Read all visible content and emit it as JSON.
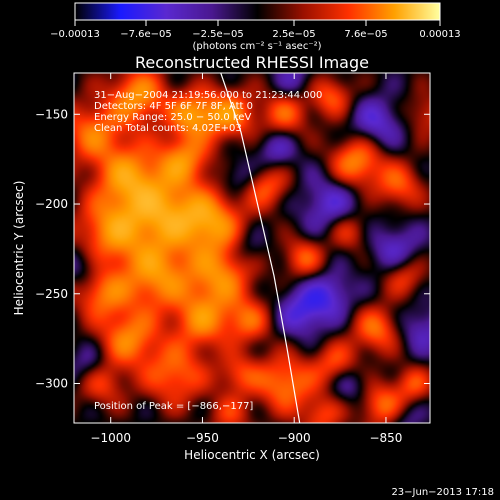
{
  "chart_data": {
    "type": "heatmap",
    "title": "Reconstructed RHESSI Image",
    "xlabel": "Heliocentric X (arcsec)",
    "ylabel": "Heliocentric Y (arcsec)",
    "xlim": [
      -1020,
      -826
    ],
    "ylim": [
      -322,
      -127
    ],
    "x_ticks": [
      -1000,
      -950,
      -900,
      -850
    ],
    "x_tick_labels": [
      "−1000",
      "−950",
      "−900",
      "−850"
    ],
    "y_ticks": [
      -300,
      -250,
      -200,
      -150
    ],
    "y_tick_labels": [
      "−300",
      "−250",
      "−200",
      "−150"
    ],
    "colorbar": {
      "range": [
        -0.00013,
        0.00013
      ],
      "tick_labels": [
        "−0.00013",
        "−7.6e−05",
        "−2.5e−05",
        "2.5e−05",
        "7.6e−05",
        "0.00013"
      ],
      "unit_label": "(photons cm⁻² s⁻¹ asec⁻²)",
      "colormap": [
        "#000000",
        "#1a1aff",
        "#5a28d0",
        "#4a1890",
        "#000000",
        "#9a1000",
        "#ff3000",
        "#ffa000",
        "#ffffa0"
      ]
    },
    "annotations": {
      "time": "31−Aug−2004 21:19:56.000 to 21:23:44.000",
      "detectors": "Detectors: 4F 5F 6F 7F 8F, Att 0",
      "energy": "Energy Range: 25.0 − 50.0 keV",
      "method": "Clean    Total counts: 4.02E+03",
      "peak": "Position of Peak = [−866,−177]"
    },
    "peak": [
      -866,
      -177
    ],
    "limb_line": [
      [
        -940,
        -127
      ],
      [
        -929,
        -160
      ],
      [
        -920,
        -200
      ],
      [
        -911,
        -240
      ],
      [
        -904,
        -280
      ],
      [
        -897,
        -322
      ]
    ],
    "blobs": [
      [
        -985,
        -140,
        1.0,
        11
      ],
      [
        -955,
        -150,
        1.0,
        9
      ],
      [
        -1010,
        -160,
        0.8,
        12
      ],
      [
        -990,
        -185,
        1.0,
        13
      ],
      [
        -960,
        -175,
        0.9,
        10
      ],
      [
        -935,
        -150,
        0.9,
        10
      ],
      [
        -970,
        -205,
        1.0,
        14
      ],
      [
        -1000,
        -215,
        0.95,
        13
      ],
      [
        -945,
        -210,
        1.0,
        12
      ],
      [
        -975,
        -240,
        1.0,
        14
      ],
      [
        -940,
        -240,
        0.9,
        12
      ],
      [
        -1005,
        -250,
        0.8,
        10
      ],
      [
        -990,
        -275,
        0.9,
        11
      ],
      [
        -950,
        -265,
        0.85,
        11
      ],
      [
        -925,
        -265,
        0.7,
        9
      ],
      [
        -965,
        -295,
        0.8,
        12
      ],
      [
        -1005,
        -300,
        0.6,
        9
      ],
      [
        -930,
        -295,
        0.6,
        8
      ],
      [
        -915,
        -190,
        0.7,
        9
      ],
      [
        -905,
        -150,
        0.7,
        9
      ],
      [
        -866,
        -177,
        1.0,
        10
      ],
      [
        -880,
        -140,
        0.7,
        8
      ],
      [
        -843,
        -190,
        0.7,
        9
      ],
      [
        -870,
        -215,
        0.6,
        8
      ],
      [
        -895,
        -230,
        0.7,
        8
      ],
      [
        -905,
        -300,
        0.9,
        11
      ],
      [
        -877,
        -290,
        0.7,
        9
      ],
      [
        -855,
        -270,
        0.8,
        9
      ],
      [
        -840,
        -240,
        0.6,
        8
      ],
      [
        -852,
        -312,
        0.8,
        9
      ],
      [
        -885,
        -318,
        0.6,
        8
      ],
      [
        -935,
        -318,
        0.5,
        8
      ],
      [
        -835,
        -300,
        0.6,
        7
      ],
      [
        -828,
        -150,
        0.5,
        8
      ],
      [
        -895,
        -260,
        -0.7,
        10
      ],
      [
        -880,
        -200,
        -0.6,
        12
      ],
      [
        -855,
        -155,
        -0.6,
        10
      ],
      [
        -845,
        -225,
        -0.55,
        10
      ],
      [
        -910,
        -170,
        -0.5,
        8
      ],
      [
        -880,
        -250,
        -0.55,
        9
      ],
      [
        -1015,
        -235,
        -0.4,
        8
      ],
      [
        -930,
        -185,
        -0.4,
        7
      ],
      [
        -870,
        -300,
        -0.5,
        8
      ],
      [
        -830,
        -270,
        -0.5,
        9
      ],
      [
        -1012,
        -290,
        -0.4,
        8
      ],
      [
        -925,
        -225,
        -0.3,
        7
      ],
      [
        -900,
        -130,
        -0.4,
        8
      ],
      [
        -840,
        -320,
        -0.35,
        7
      ]
    ]
  },
  "footer": {
    "date_text": "23−Jun−2013 17:18"
  }
}
